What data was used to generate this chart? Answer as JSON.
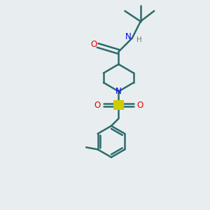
{
  "background_color": "#e8eef0",
  "bond_color": "#2d6b6b",
  "nitrogen_color": "#0000ee",
  "oxygen_color": "#ee0000",
  "sulfur_color": "#cccc00",
  "figsize": [
    3.0,
    3.0
  ],
  "dpi": 100,
  "xlim": [
    0,
    10
  ],
  "ylim": [
    0,
    10
  ]
}
